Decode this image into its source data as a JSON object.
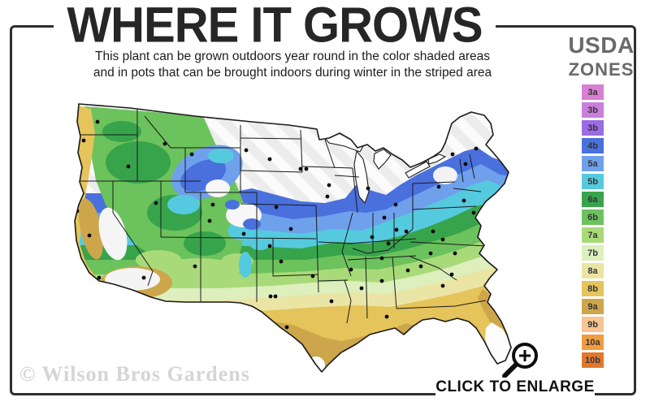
{
  "header": {
    "title": "WHERE IT GROWS",
    "subtitle_line1": "This plant can be grown outdoors year round in the color shaded areas",
    "subtitle_line2": "and in pots that can be brought indoors during winter in the striped area"
  },
  "legend": {
    "title_line1": "USDA",
    "title_line2": "ZONES",
    "zones": [
      {
        "label": "3a",
        "color": "#d77fd0"
      },
      {
        "label": "3b",
        "color": "#c97fdb"
      },
      {
        "label": "3b",
        "color": "#9b6ce5"
      },
      {
        "label": "4b",
        "color": "#4a70dd"
      },
      {
        "label": "5a",
        "color": "#6fa0ec"
      },
      {
        "label": "5b",
        "color": "#55cadf"
      },
      {
        "label": "6a",
        "color": "#37a44c"
      },
      {
        "label": "6b",
        "color": "#6cc25c"
      },
      {
        "label": "7a",
        "color": "#a9da79"
      },
      {
        "label": "7b",
        "color": "#dcefbd"
      },
      {
        "label": "8a",
        "color": "#ebe5a5"
      },
      {
        "label": "8b",
        "color": "#e4c45b"
      },
      {
        "label": "9a",
        "color": "#cda64b"
      },
      {
        "label": "9b",
        "color": "#f7c492"
      },
      {
        "label": "10a",
        "color": "#f09c41"
      },
      {
        "label": "10b",
        "color": "#e1792b"
      }
    ]
  },
  "map": {
    "watermark": "© Wilson Bros Gardens",
    "description": "USDA hardiness zone map of the contiguous United States with city dots and striped too-cold area"
  },
  "footer": {
    "enlarge_label": "CLICK TO ENLARGE"
  },
  "colors": {
    "frame": "#2f2f2f",
    "title_text": "#262626",
    "legend_title_text": "#6a6a6a",
    "watermark_text": "#d5d5d5",
    "striped_area_base": "#ececec",
    "striped_area_stripe": "#fbfbfb"
  }
}
